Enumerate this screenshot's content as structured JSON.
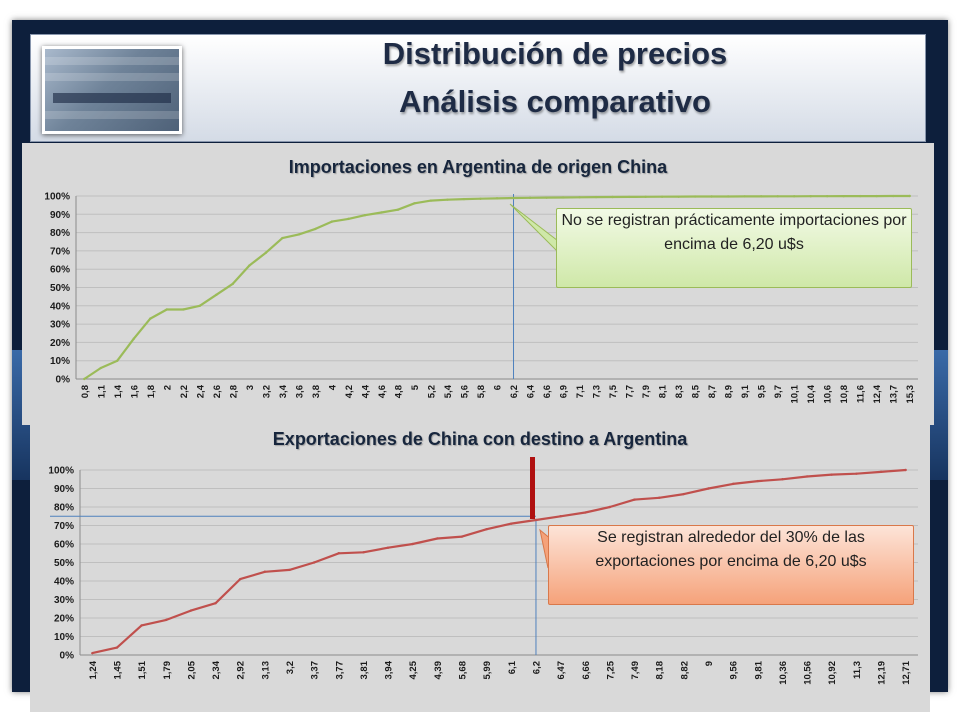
{
  "header": {
    "title_line1": "Distribución de precios",
    "title_line2": "Análisis comparativo"
  },
  "colors": {
    "imports_line": "#9bbb59",
    "exports_line": "#c0504d",
    "reference_line": "#4f81bd",
    "marker": "#b01010"
  },
  "chart_data": [
    {
      "type": "line",
      "title": "Importaciones en Argentina de origen China",
      "xlabel": "",
      "ylabel": "",
      "ylim": [
        0,
        100
      ],
      "y_ticks": [
        "0%",
        "10%",
        "20%",
        "30%",
        "40%",
        "50%",
        "60%",
        "70%",
        "80%",
        "90%",
        "100%"
      ],
      "grid": true,
      "x": [
        "0,8",
        "1,1",
        "1,4",
        "1,6",
        "1,8",
        "2",
        "2,2",
        "2,4",
        "2,6",
        "2,8",
        "3",
        "3,2",
        "3,4",
        "3,6",
        "3,8",
        "4",
        "4,2",
        "4,4",
        "4,6",
        "4,8",
        "5",
        "5,2",
        "5,4",
        "5,6",
        "5,8",
        "6",
        "6,2",
        "6,4",
        "6,6",
        "6,9",
        "7,1",
        "7,3",
        "7,5",
        "7,7",
        "7,9",
        "8,1",
        "8,3",
        "8,5",
        "8,7",
        "8,9",
        "9,1",
        "9,5",
        "9,7",
        "10,1",
        "10,4",
        "10,6",
        "10,8",
        "11,6",
        "12,4",
        "13,7",
        "15,3"
      ],
      "values": [
        0,
        6,
        10,
        22,
        33,
        38,
        38,
        40,
        46,
        52,
        62,
        69,
        77,
        79,
        82,
        86,
        87.5,
        89.5,
        91,
        92.5,
        96,
        97.5,
        98,
        98.3,
        98.5,
        98.7,
        98.9,
        99,
        99.1,
        99.2,
        99.3,
        99.4,
        99.45,
        99.5,
        99.55,
        99.6,
        99.65,
        99.7,
        99.72,
        99.75,
        99.78,
        99.8,
        99.82,
        99.85,
        99.87,
        99.9,
        99.92,
        99.94,
        99.96,
        99.98,
        100
      ],
      "reference_x": "6,2",
      "annotation": "No se registran prácticamente importaciones por encima de 6,20 u$s"
    },
    {
      "type": "line",
      "title": "Exportaciones de China  con destino a Argentina",
      "xlabel": "",
      "ylabel": "",
      "ylim": [
        0,
        100
      ],
      "y_ticks": [
        "0%",
        "10%",
        "20%",
        "30%",
        "40%",
        "50%",
        "60%",
        "70%",
        "80%",
        "90%",
        "100%"
      ],
      "grid": true,
      "x": [
        "1,24",
        "1,45",
        "1,51",
        "1,79",
        "2,05",
        "2,34",
        "2,92",
        "3,13",
        "3,2",
        "3,37",
        "3,77",
        "3,81",
        "3,94",
        "4,25",
        "4,39",
        "5,68",
        "5,99",
        "6,1",
        "6,2",
        "6,47",
        "6,66",
        "7,25",
        "7,49",
        "8,18",
        "8,82",
        "9",
        "9,56",
        "9,81",
        "10,36",
        "10,56",
        "10,92",
        "11,3",
        "12,19",
        "12,71"
      ],
      "values": [
        1,
        4,
        16,
        19,
        24,
        28,
        41,
        45,
        46,
        50,
        55,
        55.5,
        58,
        60,
        63,
        64,
        68,
        71,
        73,
        75,
        77,
        80,
        84,
        85,
        87,
        90,
        92.5,
        94,
        95,
        96.5,
        97.5,
        98,
        99,
        100
      ],
      "reference_x": "6,2",
      "reference_y_percent": 75,
      "annotation": "Se registran alrededor del 30% de las exportaciones por encima de 6,20 u$s"
    }
  ]
}
